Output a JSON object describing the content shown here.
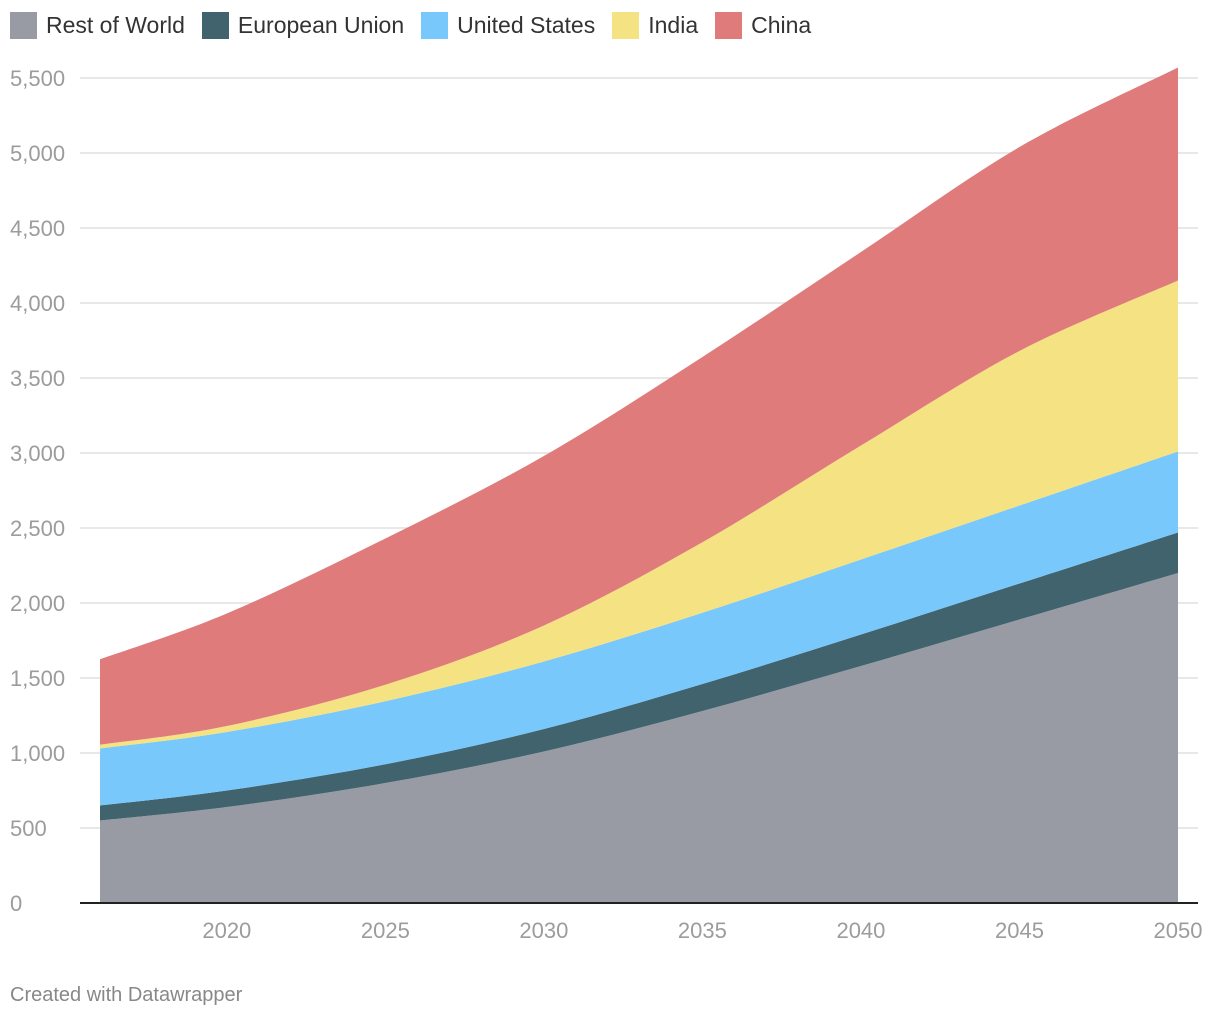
{
  "legend": [
    {
      "label": "Rest of World",
      "color": "#989ba3"
    },
    {
      "label": "European Union",
      "color": "#41636e"
    },
    {
      "label": "United States",
      "color": "#78c8fb"
    },
    {
      "label": "India",
      "color": "#f5e282"
    },
    {
      "label": "China",
      "color": "#e07b7c"
    }
  ],
  "footer": "Created with Datawrapper",
  "chart_data": {
    "type": "area",
    "stacked": true,
    "title": "",
    "xlabel": "",
    "ylabel": "",
    "xlim": [
      2016,
      2050
    ],
    "ylim": [
      0,
      5500
    ],
    "grid": "horizontal",
    "legend_position": "top-left",
    "x_ticks": [
      "2020",
      "2025",
      "2030",
      "2035",
      "2040",
      "2045",
      "2050"
    ],
    "y_ticks": [
      "0",
      "500",
      "1,000",
      "1,500",
      "2,000",
      "2,500",
      "3,000",
      "3,500",
      "4,000",
      "4,500",
      "5,000",
      "5,500"
    ],
    "x": [
      2016,
      2020,
      2025,
      2030,
      2035,
      2040,
      2045,
      2050
    ],
    "series": [
      {
        "name": "Rest of World",
        "color": "#989ba3",
        "values": [
          550,
          640,
          800,
          1010,
          1280,
          1580,
          1890,
          2200
        ]
      },
      {
        "name": "European Union",
        "color": "#41636e",
        "values": [
          100,
          110,
          125,
          150,
          180,
          210,
          240,
          270
        ]
      },
      {
        "name": "United States",
        "color": "#78c8fb",
        "values": [
          380,
          390,
          420,
          450,
          475,
          500,
          520,
          540
        ]
      },
      {
        "name": "India",
        "color": "#f5e282",
        "values": [
          25,
          40,
          110,
          240,
          470,
          760,
          1030,
          1140
        ]
      },
      {
        "name": "China",
        "color": "#e07b7c",
        "values": [
          570,
          750,
          975,
          1130,
          1235,
          1290,
          1360,
          1420
        ]
      }
    ]
  }
}
